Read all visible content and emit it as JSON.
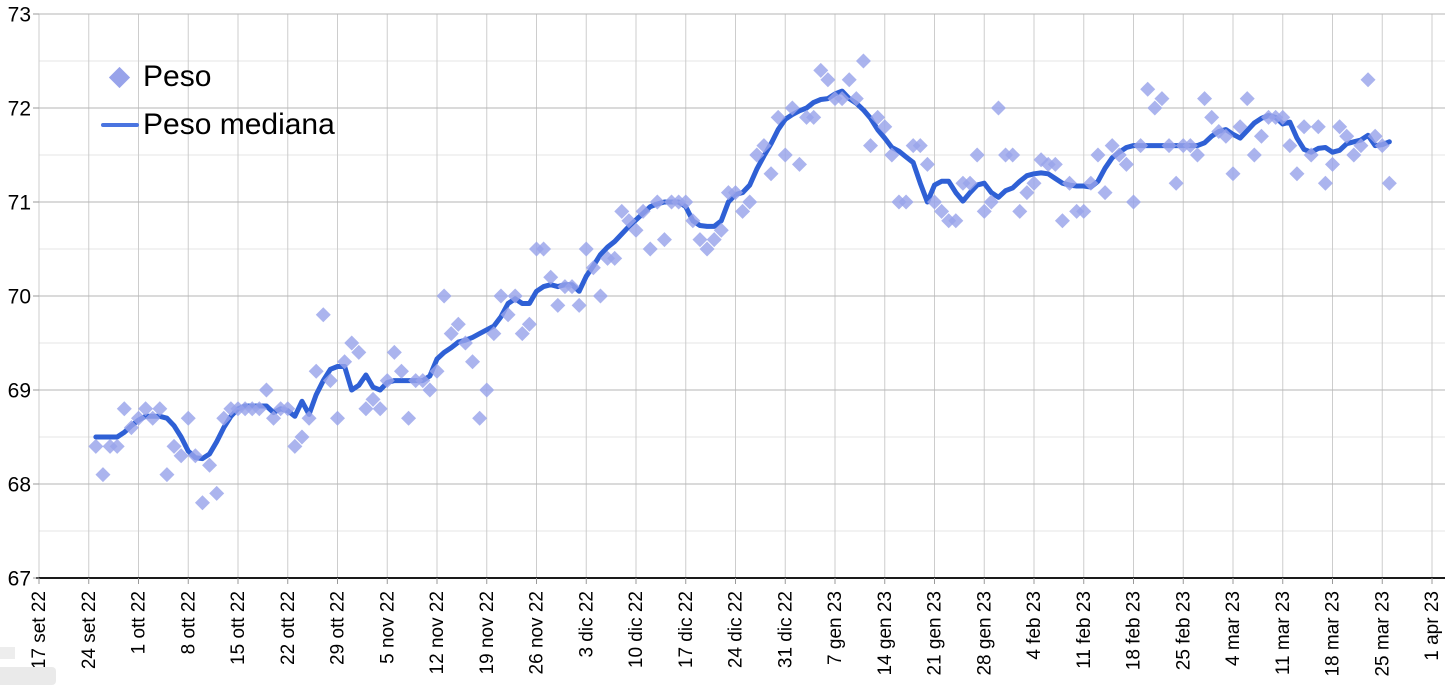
{
  "colors": {
    "scatter": "#98a3ea",
    "line": "#2f60d5",
    "legend_line_swatch": "#4a74e0",
    "grid_major": "#b6b6b6",
    "grid_minor": "#e4e4e4",
    "grid_vertical": "#cdcdcd",
    "axis": "#1a1a1a",
    "tick": "#999999",
    "text": "#000000",
    "background": "#ffffff"
  },
  "chart_data": {
    "type": "scatter",
    "title": "",
    "legend_position": "top-left-inside",
    "grid": "on",
    "legend": [
      {
        "label": "Peso",
        "marker": "diamond"
      },
      {
        "label": "Peso mediana",
        "marker": "line"
      }
    ],
    "y_axis": {
      "min": 67,
      "max": 73,
      "tick_step": 1,
      "minor_gridline_step": 0.5,
      "tick_labels": [
        "67",
        "68",
        "69",
        "70",
        "71",
        "72",
        "73"
      ]
    },
    "x_axis": {
      "tick_interval_days": 7,
      "label_rotation": "90deg counterclockwise",
      "tick_labels": [
        "17 set 22",
        "24 set 22",
        "1 ott 22",
        "8 ott 22",
        "15 ott 22",
        "22 ott 22",
        "29 ott 22",
        "5 nov 22",
        "12 nov 22",
        "19 nov 22",
        "26 nov 22",
        "3 dic 22",
        "10 dic 22",
        "17 dic 22",
        "24 dic 22",
        "31 dic 22",
        "7 gen 23",
        "14 gen 23",
        "21 gen 23",
        "28 gen 23",
        "4 feb 23",
        "11 feb 23",
        "18 feb 23",
        "25 feb 23",
        "4 mar 23",
        "11 mar 23",
        "18 mar 23",
        "25 mar 23",
        "1 apr 23"
      ]
    },
    "series_start_date": "25 set 22",
    "series_end_date": "26 mar 23",
    "sample_step_days": 1,
    "series": [
      {
        "name": "Peso",
        "type": "scatter",
        "values": [
          68.4,
          68.1,
          68.4,
          68.4,
          68.8,
          68.6,
          68.7,
          68.8,
          68.7,
          68.8,
          68.1,
          68.4,
          68.3,
          68.7,
          68.3,
          67.8,
          68.2,
          67.9,
          68.7,
          68.8,
          68.8,
          68.8,
          68.8,
          68.8,
          69.0,
          68.7,
          68.8,
          68.8,
          68.4,
          68.5,
          68.7,
          69.2,
          69.8,
          69.1,
          68.7,
          69.3,
          69.5,
          69.4,
          68.8,
          68.9,
          68.8,
          69.1,
          69.4,
          69.2,
          68.7,
          69.1,
          69.1,
          69.0,
          69.2,
          70.0,
          69.6,
          69.7,
          69.5,
          69.3,
          68.7,
          69.0,
          69.6,
          70.0,
          69.8,
          70.0,
          69.6,
          69.7,
          70.5,
          70.5,
          70.2,
          69.9,
          70.1,
          70.1,
          69.9,
          70.5,
          70.3,
          70.0,
          70.4,
          70.4,
          70.9,
          70.8,
          70.7,
          70.9,
          70.5,
          71.0,
          70.6,
          71.0,
          71.0,
          71.0,
          70.8,
          70.6,
          70.5,
          70.6,
          70.7,
          71.1,
          71.1,
          70.9,
          71.0,
          71.5,
          71.6,
          71.3,
          71.9,
          71.5,
          72.0,
          71.4,
          71.9,
          71.9,
          72.4,
          72.3,
          72.1,
          72.1,
          72.3,
          72.1,
          72.5,
          71.6,
          71.9,
          71.8,
          71.5,
          71.0,
          71.0,
          71.6,
          71.6,
          71.4,
          71.0,
          70.9,
          70.8,
          70.8,
          71.2,
          71.2,
          71.5,
          70.9,
          71.0,
          72.0,
          71.5,
          71.5,
          70.9,
          71.1,
          71.2,
          71.45,
          71.4,
          71.4,
          70.8,
          71.2,
          70.9,
          70.9,
          71.2,
          71.5,
          71.1,
          71.6,
          71.5,
          71.4,
          71.0,
          71.6,
          72.2,
          72.0,
          72.1,
          71.6,
          71.2,
          71.6,
          71.6,
          71.5,
          72.1,
          71.9,
          71.75,
          71.7,
          71.3,
          71.8,
          72.1,
          71.5,
          71.7,
          71.9,
          71.9,
          71.9,
          71.6,
          71.3,
          71.8,
          71.5,
          71.8,
          71.2,
          71.4,
          71.8,
          71.7,
          71.5,
          71.6,
          72.3,
          71.7,
          71.6,
          71.2
        ]
      },
      {
        "name": "Peso mediana",
        "type": "line",
        "values": [
          68.5,
          68.5,
          68.5,
          68.5,
          68.55,
          68.62,
          68.68,
          68.72,
          68.72,
          68.72,
          68.7,
          68.62,
          68.5,
          68.35,
          68.28,
          68.27,
          68.32,
          68.45,
          68.6,
          68.72,
          68.8,
          68.83,
          68.83,
          68.83,
          68.83,
          68.76,
          68.8,
          68.78,
          68.72,
          68.88,
          68.74,
          68.95,
          69.1,
          69.22,
          69.25,
          69.25,
          69.0,
          69.05,
          69.16,
          69.03,
          69.0,
          69.08,
          69.1,
          69.1,
          69.1,
          69.1,
          69.1,
          69.15,
          69.33,
          69.4,
          69.45,
          69.51,
          69.53,
          69.56,
          69.6,
          69.64,
          69.68,
          69.78,
          69.92,
          69.97,
          69.92,
          69.92,
          70.05,
          70.1,
          70.12,
          70.1,
          70.12,
          70.12,
          70.05,
          70.21,
          70.32,
          70.44,
          70.52,
          70.58,
          70.66,
          70.74,
          70.81,
          70.88,
          70.95,
          70.98,
          71.0,
          71.0,
          71.0,
          70.95,
          70.8,
          70.75,
          70.74,
          70.74,
          70.8,
          71.0,
          71.08,
          71.1,
          71.18,
          71.35,
          71.49,
          71.62,
          71.77,
          71.88,
          71.93,
          71.97,
          72.0,
          72.06,
          72.09,
          72.1,
          72.15,
          72.18,
          72.1,
          72.05,
          71.98,
          71.89,
          71.77,
          71.68,
          71.58,
          71.54,
          71.48,
          71.42,
          71.2,
          71.0,
          71.18,
          71.22,
          71.22,
          71.1,
          71.01,
          71.1,
          71.18,
          71.2,
          71.1,
          71.05,
          71.12,
          71.15,
          71.22,
          71.28,
          71.3,
          71.31,
          71.3,
          71.25,
          71.2,
          71.18,
          71.17,
          71.17,
          71.16,
          71.22,
          71.36,
          71.47,
          71.53,
          71.58,
          71.6,
          71.6,
          71.6,
          71.6,
          71.6,
          71.6,
          71.6,
          71.6,
          71.6,
          71.6,
          71.63,
          71.7,
          71.75,
          71.77,
          71.72,
          71.68,
          71.76,
          71.84,
          71.89,
          71.92,
          71.9,
          71.83,
          71.85,
          71.68,
          71.56,
          71.53,
          71.57,
          71.58,
          71.53,
          71.55,
          71.62,
          71.64,
          71.66,
          71.71,
          71.6,
          71.61,
          71.64
        ]
      }
    ]
  }
}
